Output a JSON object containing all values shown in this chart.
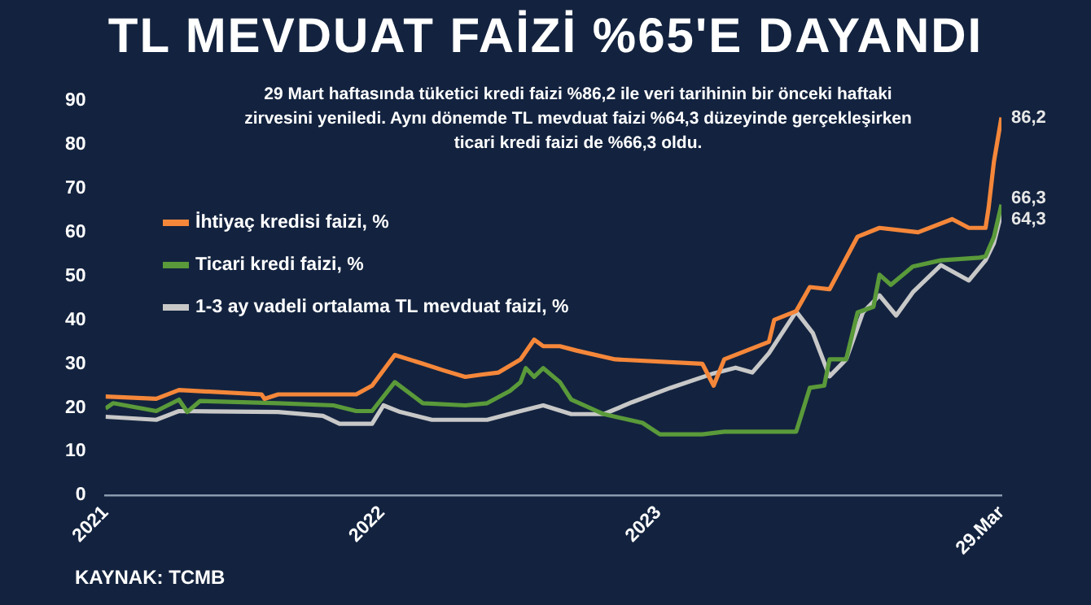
{
  "chart_data": {
    "type": "line",
    "title": "TL MEVDUAT FAİZİ %65'E DAYANDI",
    "annotations": [
      "29 Mart haftasında tüketici kredi faizi %86,2 ile veri tarihinin bir önceki haftaki zirvesini yeniledi. Aynı dönemde TL mevduat faizi %64,3 düzeyinde gerçekleşirken ticari kredi faizi de %66,3 oldu.",
      "KAYNAK: TCMB"
    ],
    "xlim": [
      "2021-01-01",
      "2024-03-29"
    ],
    "xticks": [
      {
        "value": "2021-01-01",
        "label": "2021"
      },
      {
        "value": "2022-01-01",
        "label": "2022"
      },
      {
        "value": "2023-01-01",
        "label": "2023"
      },
      {
        "value": "2024-03-29",
        "label": "29.Mar"
      }
    ],
    "ylim": [
      0,
      90
    ],
    "yticks": [
      0,
      10,
      20,
      30,
      40,
      50,
      60,
      70,
      80,
      90
    ],
    "grid": false,
    "legend": "top left",
    "marker": "none",
    "line_style": "solid",
    "series": [
      {
        "name": "İhtiyaç kredisi faizi, %",
        "color": "#f5873a",
        "x": [
          "2021-01-01",
          "2021-03-09",
          "2021-04-08",
          "2021-07-26",
          "2021-07-30",
          "2021-08-17",
          "2021-11-28",
          "2021-12-19",
          "2022-01-18",
          "2022-02-24",
          "2022-03-23",
          "2022-04-21",
          "2022-05-12",
          "2022-06-04",
          "2022-07-03",
          "2022-07-21",
          "2022-08-02",
          "2022-08-24",
          "2022-09-15",
          "2022-11-05",
          "2023-02-28",
          "2023-03-15",
          "2023-03-29",
          "2023-05-27",
          "2023-06-03",
          "2023-07-02",
          "2023-07-20",
          "2023-08-15",
          "2023-09-21",
          "2023-10-20",
          "2023-12-10",
          "2024-01-24",
          "2024-02-15",
          "2024-03-08",
          "2024-03-12",
          "2024-03-19",
          "2024-03-29"
        ],
        "values": [
          22.5,
          22,
          24,
          23,
          22,
          23,
          23,
          25,
          32,
          30,
          28.5,
          27,
          27.5,
          28,
          31,
          35.5,
          34,
          34,
          33,
          31,
          30,
          25,
          31,
          35,
          40,
          42,
          47.5,
          47,
          59,
          61,
          60,
          63,
          61,
          61,
          65.5,
          76,
          86.2
        ],
        "value_labels": [
          null,
          null,
          null,
          null,
          null,
          null,
          null,
          null,
          null,
          null,
          null,
          null,
          null,
          null,
          null,
          null,
          null,
          null,
          null,
          null,
          null,
          null,
          null,
          null,
          null,
          null,
          null,
          null,
          null,
          null,
          null,
          null,
          null,
          null,
          null,
          null,
          "86,2"
        ]
      },
      {
        "name": "Ticari kredi faizi, %",
        "color": "#5a9a3a",
        "x": [
          "2021-01-01",
          "2021-01-11",
          "2021-03-09",
          "2021-04-08",
          "2021-04-19",
          "2021-05-06",
          "2021-08-17",
          "2021-10-29",
          "2021-11-28",
          "2021-12-19",
          "2022-01-18",
          "2022-02-24",
          "2022-04-21",
          "2022-05-20",
          "2022-06-19",
          "2022-07-03",
          "2022-07-10",
          "2022-07-21",
          "2022-08-02",
          "2022-08-24",
          "2022-09-08",
          "2022-10-21",
          "2022-12-11",
          "2023-01-03",
          "2023-02-28",
          "2023-03-29",
          "2023-07-02",
          "2023-07-20",
          "2023-08-08",
          "2023-08-15",
          "2023-09-06",
          "2023-09-21",
          "2023-10-12",
          "2023-10-20",
          "2023-11-04",
          "2023-12-03",
          "2024-01-09",
          "2024-02-29",
          "2024-03-08",
          "2024-03-19",
          "2024-03-29"
        ],
        "values": [
          19.8,
          21,
          19.2,
          21.8,
          19,
          21.5,
          21,
          20.5,
          19.2,
          19.2,
          25.8,
          21,
          20.5,
          21,
          23.8,
          25.8,
          29,
          27,
          29,
          25.8,
          21.8,
          18.5,
          16.5,
          13.9,
          13.9,
          14.5,
          14.5,
          24.5,
          25,
          31,
          31,
          41.7,
          43,
          50.3,
          48,
          52.2,
          53.6,
          54.2,
          54.5,
          58.9,
          66.3
        ],
        "value_labels": [
          null,
          null,
          null,
          null,
          null,
          null,
          null,
          null,
          null,
          null,
          null,
          null,
          null,
          null,
          null,
          null,
          null,
          null,
          null,
          null,
          null,
          null,
          null,
          null,
          null,
          null,
          null,
          null,
          null,
          null,
          null,
          null,
          null,
          null,
          null,
          null,
          null,
          null,
          null,
          null,
          "66,3"
        ]
      },
      {
        "name": "1-3 ay vadeli ortalama TL mevduat faizi, %",
        "color": "#c8c8c8",
        "x": [
          "2021-01-01",
          "2021-03-09",
          "2021-04-08",
          "2021-08-17",
          "2021-10-15",
          "2021-11-06",
          "2021-12-19",
          "2022-01-03",
          "2022-01-25",
          "2022-03-08",
          "2022-05-20",
          "2022-07-03",
          "2022-08-02",
          "2022-09-08",
          "2022-10-21",
          "2022-11-27",
          "2023-01-17",
          "2023-03-15",
          "2023-04-13",
          "2023-05-05",
          "2023-05-27",
          "2023-07-02",
          "2023-07-24",
          "2023-08-15",
          "2023-09-06",
          "2023-09-28",
          "2023-10-20",
          "2023-11-11",
          "2023-12-03",
          "2024-01-09",
          "2024-02-15",
          "2024-03-08",
          "2024-03-19",
          "2024-03-29"
        ],
        "values": [
          17.9,
          17.2,
          19.2,
          19,
          18.1,
          16.3,
          16.3,
          20.5,
          19,
          17.2,
          17.2,
          19.2,
          20.5,
          18.5,
          18.5,
          21.2,
          24.5,
          27.8,
          29.1,
          28,
          32.4,
          41.9,
          37,
          27.1,
          31,
          41.7,
          45.6,
          41,
          46.3,
          52.5,
          49,
          53.6,
          57.5,
          64.3
        ],
        "value_labels": [
          null,
          null,
          null,
          null,
          null,
          null,
          null,
          null,
          null,
          null,
          null,
          null,
          null,
          null,
          null,
          null,
          null,
          null,
          null,
          null,
          null,
          null,
          null,
          null,
          null,
          null,
          null,
          null,
          null,
          null,
          null,
          null,
          null,
          "64,3"
        ]
      }
    ]
  }
}
